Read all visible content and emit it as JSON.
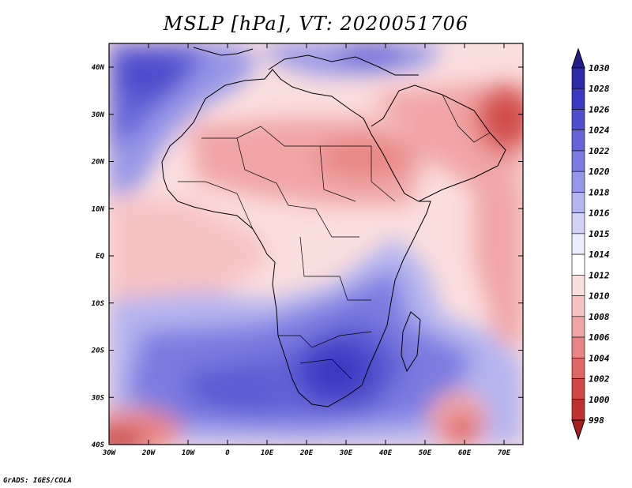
{
  "title": "MSLP [hPa], VT: 2020051706",
  "credit": "GrADS: IGES/COLA",
  "variable": "MSLP",
  "units": "hPa",
  "valid_time": "2020051706",
  "lat_ticks": [
    "40N",
    "30N",
    "20N",
    "10N",
    "EQ",
    "10S",
    "20S",
    "30S",
    "40S"
  ],
  "lon_ticks": [
    "30W",
    "20W",
    "10W",
    "0",
    "10E",
    "20E",
    "30E",
    "40E",
    "50E",
    "60E",
    "70E"
  ],
  "colorbar": {
    "labels": [
      "1030",
      "1028",
      "1026",
      "1024",
      "1022",
      "1020",
      "1018",
      "1016",
      "1015",
      "1014",
      "1012",
      "1010",
      "1008",
      "1006",
      "1004",
      "1002",
      "1000",
      "998"
    ],
    "colors": [
      "#241d8c",
      "#2d2ba8",
      "#3a39c0",
      "#4f4ecd",
      "#6565d8",
      "#7b7be0",
      "#9696e8",
      "#b4b4f0",
      "#d2d2f8",
      "#ececff",
      "#ffffff",
      "#fbdede",
      "#f6c2c2",
      "#f0a5a5",
      "#e88686",
      "#de6666",
      "#d04848",
      "#c03232",
      "#a81e1e"
    ]
  }
}
